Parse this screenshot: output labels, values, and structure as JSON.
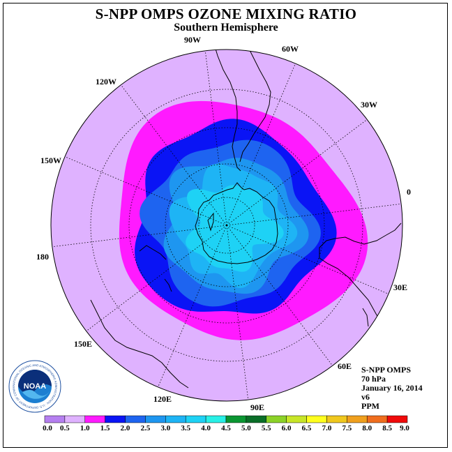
{
  "title": "S-NPP OMPS OZONE MIXING RATIO",
  "subtitle": "Southern Hemisphere",
  "longitude_labels": [
    "90W",
    "60W",
    "30W",
    "0",
    "30E",
    "60E",
    "90E",
    "120E",
    "150E",
    "180",
    "150W",
    "120W"
  ],
  "info": {
    "instrument": "S-NPP OMPS",
    "level": "70 hPa",
    "date": "January 16, 2014",
    "version": "v6",
    "units": "PPM"
  },
  "logo": {
    "text": "NOAA",
    "ring_text": "NATIONAL OCEANIC AND ATMOSPHERIC ADMINISTRATION · U.S. DEPARTMENT OF COMMERCE"
  },
  "colorbar": {
    "labels": [
      "0.0",
      "0.5",
      "1.0",
      "1.5",
      "2.0",
      "2.5",
      "3.0",
      "3.5",
      "4.0",
      "4.5",
      "5.0",
      "5.5",
      "6.0",
      "6.5",
      "7.0",
      "7.5",
      "8.0",
      "8.5",
      "9.0"
    ],
    "colors": [
      "#b57ff0",
      "#dfb2ff",
      "#ff1aff",
      "#0a14f5",
      "#1e64f0",
      "#1e96f0",
      "#1eb4f5",
      "#1ed2f5",
      "#28f0e6",
      "#0a9632",
      "#0a6e28",
      "#8cd228",
      "#c8e628",
      "#ffff1e",
      "#f0c81e",
      "#f0a01e",
      "#f06e1e",
      "#f00a0a",
      "#7d502d"
    ]
  },
  "map_colors": {
    "background": "#dfb2ff",
    "band_1_0_1_5": "#ff1aff",
    "band_1_5_2_0": "#0a14f5",
    "band_2_0_2_5": "#1e64f0",
    "band_2_5_3_0": "#1e96f0",
    "band_3_0_3_5": "#1eb4f5",
    "band_3_5_4_0": "#1ed2f5"
  }
}
